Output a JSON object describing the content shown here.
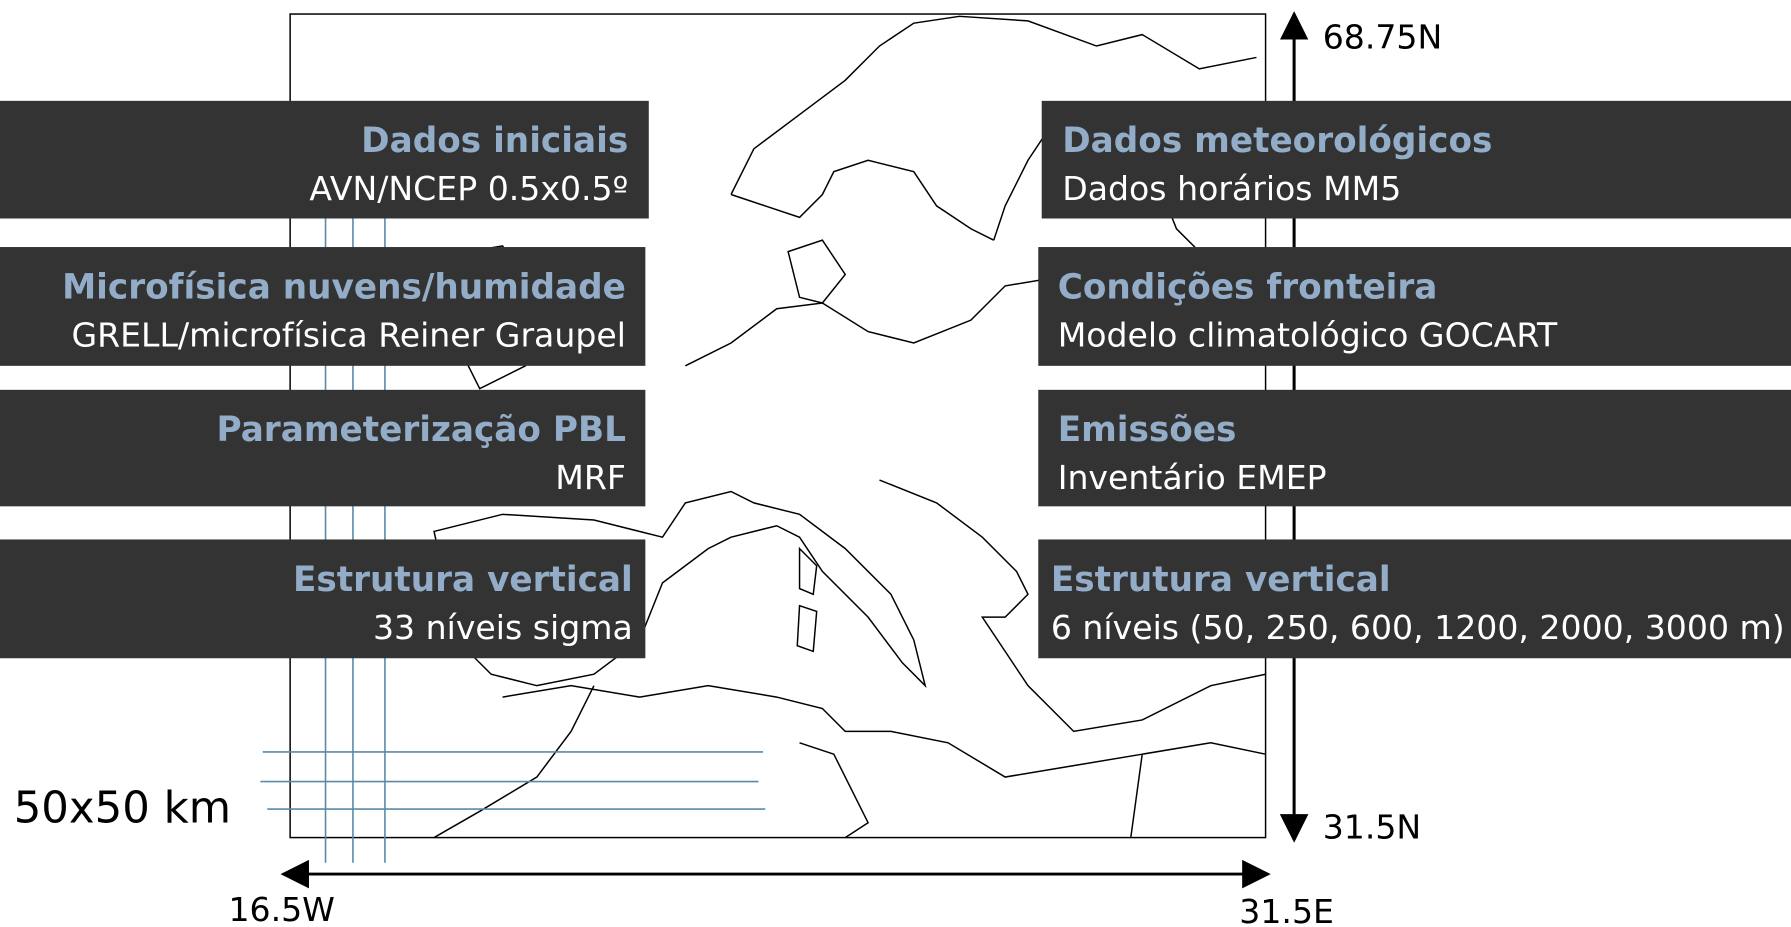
{
  "left_boxes": [
    {
      "title": "Dados iniciais",
      "text": "AVN/NCEP 0.5x0.5º"
    },
    {
      "title": "Microfísica nuvens/humidade",
      "text": "GRELL/microfísica Reiner Graupel"
    },
    {
      "title": "Parameterização PBL",
      "text": "MRF"
    },
    {
      "title": "Estrutura vertical",
      "text": "33 níveis sigma"
    }
  ],
  "right_boxes": [
    {
      "title": "Dados meteorológicos",
      "text": "Dados horários MM5"
    },
    {
      "title": "Condições fronteira",
      "text": "Modelo climatológico GOCART"
    },
    {
      "title": "Emissões",
      "text": "Inventário EMEP"
    },
    {
      "title": "Estrutura vertical",
      "text": "6 níveis (50, 250, 600, 1200, 2000, 3000 m)"
    }
  ],
  "lat_top": "68.75N",
  "lat_bottom": "31.5N",
  "lon_left": "16.5W",
  "lon_right": "31.5E",
  "resolution": "50x50 km"
}
